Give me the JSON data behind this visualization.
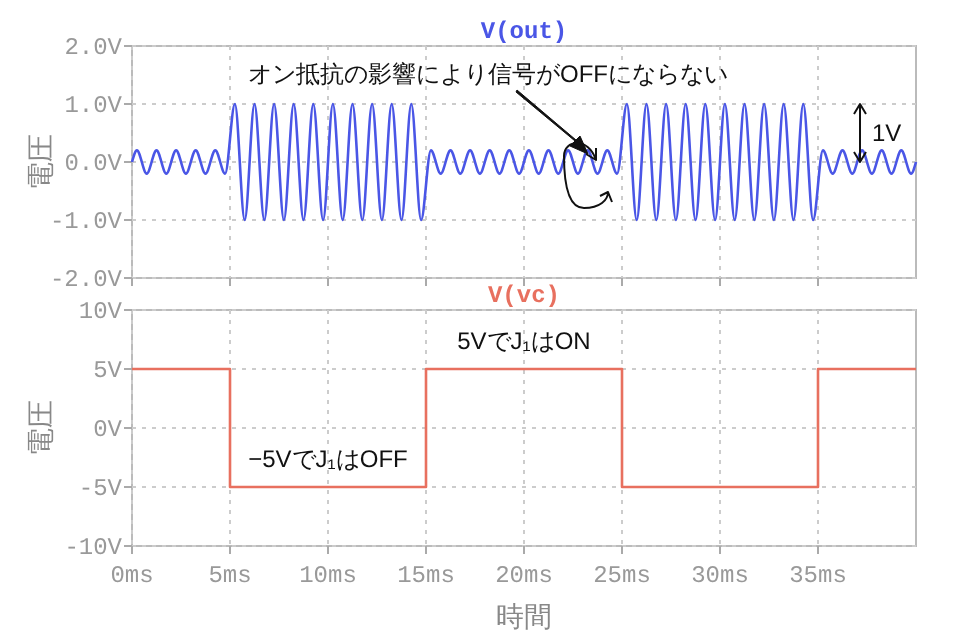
{
  "chart_data": [
    {
      "type": "line",
      "title": "V(out)",
      "ylabel": "電圧",
      "xlim": [
        0,
        40
      ],
      "xticks": [
        0,
        5,
        10,
        15,
        20,
        25,
        30,
        35
      ],
      "ylim": [
        -2,
        2
      ],
      "yticks": [
        {
          "value": 2,
          "label": "2.0V"
        },
        {
          "value": 1,
          "label": "1.0V"
        },
        {
          "value": 0,
          "label": "0.0V"
        },
        {
          "value": -1,
          "label": "-1.0V"
        },
        {
          "value": -2,
          "label": "-2.0V"
        }
      ],
      "tick_labels": "y",
      "grid": true,
      "x": [
        0,
        0.25,
        0.75,
        1.25,
        1.75,
        2.25,
        2.75,
        3.25,
        3.75,
        4.25,
        4.75,
        5.25,
        5.75,
        6.25,
        6.75,
        7.25,
        7.75,
        8.25,
        8.75,
        9.25,
        9.75,
        10.25,
        10.75,
        11.25,
        11.75,
        12.25,
        12.75,
        13.25,
        13.75,
        14.25,
        14.75,
        15.25,
        15.75,
        16.25,
        16.75,
        17.25,
        17.75,
        18.25,
        18.75,
        19.25,
        19.75,
        20.25,
        20.75,
        21.25,
        21.75,
        22.25,
        22.75,
        23.25,
        23.75,
        24.25,
        24.75,
        25.25,
        25.75,
        26.25,
        26.75,
        27.25,
        27.75,
        28.25,
        28.75,
        29.25,
        29.75,
        30.25,
        30.75,
        31.25,
        31.75,
        32.25,
        32.75,
        33.25,
        33.75,
        34.25,
        34.75,
        35.25,
        35.75,
        36.25,
        36.75,
        37.25,
        37.75,
        38.25,
        38.75,
        39.25,
        39.75,
        40
      ],
      "series": [
        {
          "color": "#4a56e6",
          "values": [
            0,
            0.2,
            -0.2,
            0.2,
            -0.2,
            0.2,
            -0.2,
            0.2,
            -0.2,
            0.2,
            -0.2,
            1,
            -1,
            1,
            -1,
            1,
            -1,
            1,
            -1,
            1,
            -1,
            1,
            -1,
            1,
            -1,
            1,
            -1,
            1,
            -1,
            1,
            -1,
            0.2,
            -0.2,
            0.2,
            -0.2,
            0.2,
            -0.2,
            0.2,
            -0.2,
            0.2,
            -0.2,
            0.2,
            -0.2,
            0.2,
            -0.2,
            0.2,
            -0.2,
            0.2,
            -0.2,
            0.2,
            -0.2,
            1,
            -1,
            1,
            -1,
            1,
            -1,
            1,
            -1,
            1,
            -1,
            1,
            -1,
            1,
            -1,
            1,
            -1,
            1,
            -1,
            1,
            -1,
            0.2,
            -0.2,
            0.2,
            -0.2,
            0.2,
            -0.2,
            0.2,
            -0.2,
            0.2,
            -0.2,
            0
          ]
        }
      ],
      "annotations": [
        "オン抵抗の影響により信号がOFFにならない",
        "1V"
      ]
    },
    {
      "type": "line",
      "title": "V(vc)",
      "ylabel": "電圧",
      "xlabel": "時間",
      "xlim": [
        0,
        40
      ],
      "xticks": [
        {
          "value": 0,
          "label": "0ms"
        },
        {
          "value": 5,
          "label": "5ms"
        },
        {
          "value": 10,
          "label": "10ms"
        },
        {
          "value": 15,
          "label": "15ms"
        },
        {
          "value": 20,
          "label": "20ms"
        },
        {
          "value": 25,
          "label": "25ms"
        },
        {
          "value": 30,
          "label": "30ms"
        },
        {
          "value": 35,
          "label": "35ms"
        }
      ],
      "ylim": [
        -10,
        10
      ],
      "yticks": [
        {
          "value": 10,
          "label": "10V"
        },
        {
          "value": 5,
          "label": "5V"
        },
        {
          "value": 0,
          "label": "0V"
        },
        {
          "value": -5,
          "label": "-5V"
        },
        {
          "value": -10,
          "label": "-10V"
        }
      ],
      "grid": true,
      "x": [
        0,
        5,
        5,
        15,
        15,
        25,
        25,
        35,
        35,
        40
      ],
      "series": [
        {
          "color": "#e8705f",
          "values": [
            5,
            5,
            -5,
            -5,
            5,
            5,
            -5,
            -5,
            5,
            5
          ]
        }
      ],
      "annotations": [
        {
          "text": "5VでJ₁はON",
          "x": 20,
          "y": 5
        },
        {
          "text": "−5VでJ₁はOFF",
          "x": 10,
          "y": -5
        }
      ]
    }
  ]
}
